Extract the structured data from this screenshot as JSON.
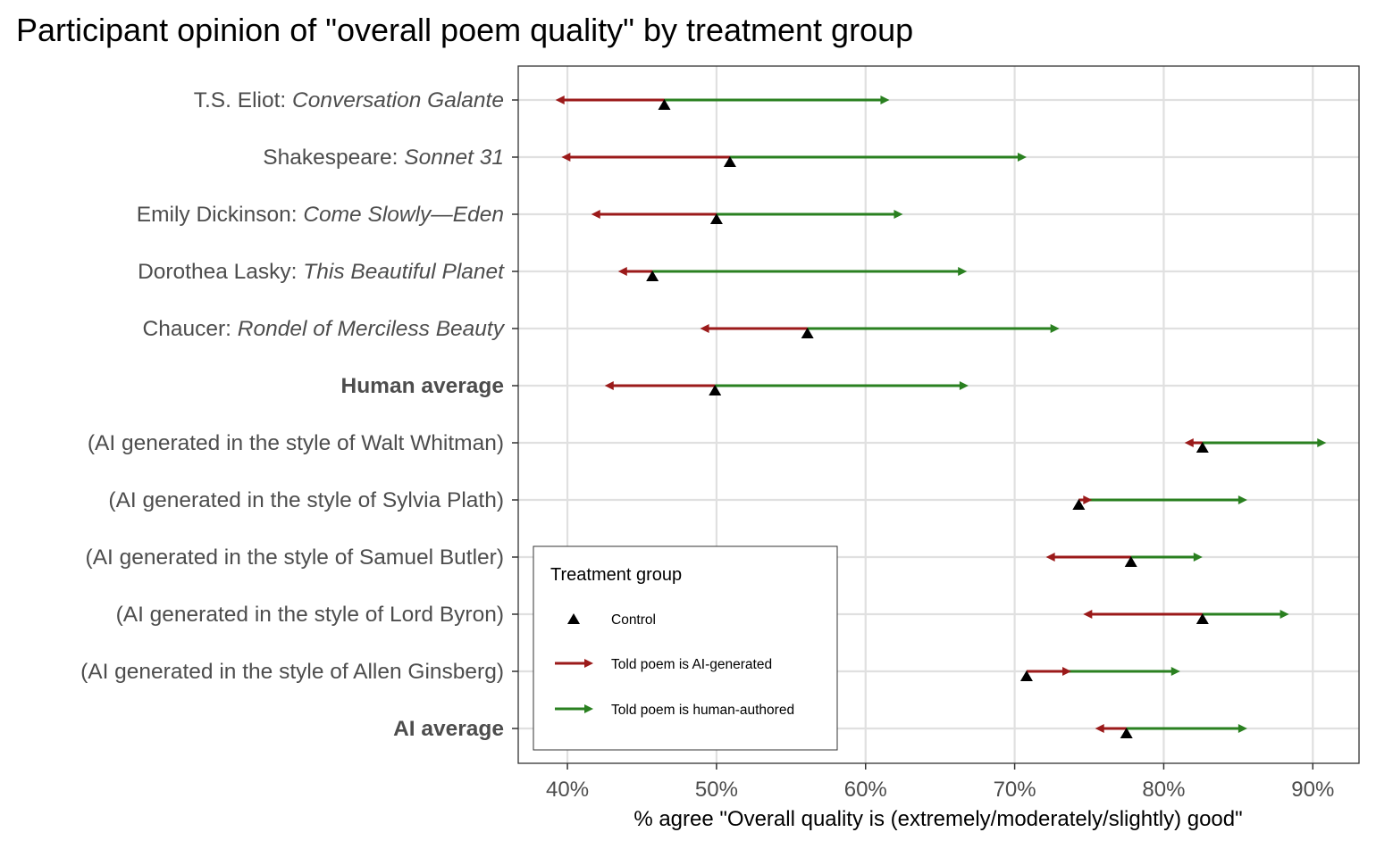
{
  "chart_data": {
    "type": "arrow-dot",
    "title": "Participant opinion of \"overall poem quality\" by treatment group",
    "xlabel": "% agree \"Overall quality is (extremely/moderately/slightly) good\"",
    "ylabel": "",
    "xlim": [
      36.7,
      93.1
    ],
    "xticks": [
      40,
      50,
      60,
      70,
      80,
      90
    ],
    "xtick_labels": [
      "40%",
      "50%",
      "60%",
      "70%",
      "80%",
      "90%"
    ],
    "grid": true,
    "legend": {
      "title": "Treatment group",
      "placement": "bottom-left",
      "entries": [
        {
          "label": "Control",
          "marker": "triangle",
          "color": "#000000"
        },
        {
          "label": "Told poem is AI-generated",
          "marker": "arrow",
          "color": "#9b1a1a"
        },
        {
          "label": "Told poem is human-authored",
          "marker": "arrow",
          "color": "#2a8020"
        }
      ]
    },
    "colors": {
      "control": "#000000",
      "ai_told": "#9b1a1a",
      "human_told": "#2a8020",
      "grid": "#e0e0e0"
    },
    "rows": [
      {
        "author": "T.S. Eliot: ",
        "title": "Conversation Galante",
        "bold": false,
        "control": 46.5,
        "told_ai": 39.2,
        "told_human": 61.6
      },
      {
        "author": "Shakespeare: ",
        "title": "Sonnet 31",
        "bold": false,
        "control": 50.9,
        "told_ai": 39.6,
        "told_human": 70.8
      },
      {
        "author": "Emily Dickinson: ",
        "title": "Come Slowly—Eden",
        "bold": false,
        "control": 50.0,
        "told_ai": 41.6,
        "told_human": 62.5
      },
      {
        "author": "Dorothea Lasky: ",
        "title": "This Beautiful Planet",
        "bold": false,
        "control": 45.7,
        "told_ai": 43.4,
        "told_human": 66.8
      },
      {
        "author": "Chaucer: ",
        "title": "Rondel of Merciless Beauty",
        "bold": false,
        "control": 56.1,
        "told_ai": 48.9,
        "told_human": 73.0
      },
      {
        "author": "Human average",
        "title": "",
        "bold": true,
        "control": 49.9,
        "told_ai": 42.5,
        "told_human": 66.9
      },
      {
        "author": "(AI generated in the style of Walt Whitman)",
        "title": "",
        "bold": false,
        "control": 82.6,
        "told_ai": 81.4,
        "told_human": 90.9
      },
      {
        "author": "(AI generated in the style of Sylvia Plath)",
        "title": "",
        "bold": false,
        "control": 74.3,
        "told_ai": 75.2,
        "told_human": 85.6
      },
      {
        "author": "(AI generated in the style of Samuel Butler)",
        "title": "",
        "bold": false,
        "control": 77.8,
        "told_ai": 72.1,
        "told_human": 82.6
      },
      {
        "author": "(AI generated in the style of Lord Byron)",
        "title": "",
        "bold": false,
        "control": 82.6,
        "told_ai": 74.6,
        "told_human": 88.4
      },
      {
        "author": "(AI generated in the style of Allen Ginsberg)",
        "title": "",
        "bold": false,
        "control": 70.8,
        "told_ai": 73.8,
        "told_human": 81.1
      },
      {
        "author": "AI average",
        "title": "",
        "bold": true,
        "control": 77.5,
        "told_ai": 75.4,
        "told_human": 85.6
      }
    ]
  }
}
